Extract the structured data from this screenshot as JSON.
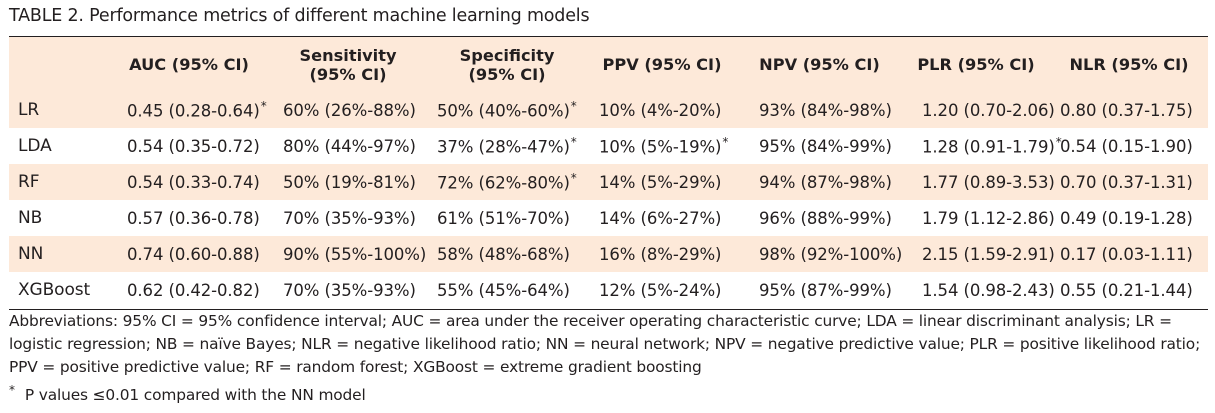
{
  "caption": {
    "label": "TABLE 2.",
    "title": "Performance metrics of different machine learning models"
  },
  "table": {
    "header_bg": "#fde9d9",
    "columns": [
      {
        "line1": "",
        "line2": ""
      },
      {
        "line1": "AUC (95% CI)",
        "line2": ""
      },
      {
        "line1": "Sensitivity",
        "line2": "(95% CI)"
      },
      {
        "line1": "Specificity",
        "line2": "(95% CI)"
      },
      {
        "line1": "PPV (95% CI)",
        "line2": ""
      },
      {
        "line1": "NPV (95% CI)",
        "line2": ""
      },
      {
        "line1": "PLR (95% CI)",
        "line2": ""
      },
      {
        "line1": "NLR (95% CI)",
        "line2": ""
      }
    ],
    "rows": [
      {
        "model": "LR",
        "cells": [
          {
            "text": "0.45 (0.28-0.64)",
            "star": "*"
          },
          {
            "text": "60% (26%-88%)",
            "star": ""
          },
          {
            "text": "50% (40%-60%)",
            "star": "*"
          },
          {
            "text": "10% (4%-20%)",
            "star": ""
          },
          {
            "text": "93% (84%-98%)",
            "star": ""
          },
          {
            "text": "1.20 (0.70-2.06)",
            "star": ""
          },
          {
            "text": "0.80 (0.37-1.75)",
            "star": ""
          }
        ]
      },
      {
        "model": "LDA",
        "cells": [
          {
            "text": "0.54 (0.35-0.72)",
            "star": ""
          },
          {
            "text": "80% (44%-97%)",
            "star": ""
          },
          {
            "text": "37% (28%-47%)",
            "star": "*"
          },
          {
            "text": "10% (5%-19%)",
            "star": "*"
          },
          {
            "text": "95% (84%-99%)",
            "star": ""
          },
          {
            "text": "1.28 (0.91-1.79)",
            "star": "*"
          },
          {
            "text": "0.54 (0.15-1.90)",
            "star": ""
          }
        ]
      },
      {
        "model": "RF",
        "cells": [
          {
            "text": "0.54 (0.33-0.74)",
            "star": ""
          },
          {
            "text": "50% (19%-81%)",
            "star": ""
          },
          {
            "text": "72% (62%-80%)",
            "star": "*"
          },
          {
            "text": "14% (5%-29%)",
            "star": ""
          },
          {
            "text": "94% (87%-98%)",
            "star": ""
          },
          {
            "text": "1.77 (0.89-3.53)",
            "star": ""
          },
          {
            "text": "0.70 (0.37-1.31)",
            "star": ""
          }
        ]
      },
      {
        "model": "NB",
        "cells": [
          {
            "text": "0.57 (0.36-0.78)",
            "star": ""
          },
          {
            "text": "70% (35%-93%)",
            "star": ""
          },
          {
            "text": "61% (51%-70%)",
            "star": ""
          },
          {
            "text": "14% (6%-27%)",
            "star": ""
          },
          {
            "text": "96% (88%-99%)",
            "star": ""
          },
          {
            "text": "1.79 (1.12-2.86)",
            "star": ""
          },
          {
            "text": "0.49 (0.19-1.28)",
            "star": ""
          }
        ]
      },
      {
        "model": "NN",
        "cells": [
          {
            "text": "0.74 (0.60-0.88)",
            "star": ""
          },
          {
            "text": "90% (55%-100%)",
            "star": ""
          },
          {
            "text": "58% (48%-68%)",
            "star": ""
          },
          {
            "text": "16% (8%-29%)",
            "star": ""
          },
          {
            "text": "98% (92%-100%)",
            "star": ""
          },
          {
            "text": "2.15 (1.59-2.91)",
            "star": ""
          },
          {
            "text": "0.17 (0.03-1.11)",
            "star": ""
          }
        ]
      },
      {
        "model": "XGBoost",
        "cells": [
          {
            "text": "0.62 (0.42-0.82)",
            "star": ""
          },
          {
            "text": "70% (35%-93%)",
            "star": ""
          },
          {
            "text": "55% (45%-64%)",
            "star": ""
          },
          {
            "text": "12% (5%-24%)",
            "star": ""
          },
          {
            "text": "95% (87%-99%)",
            "star": ""
          },
          {
            "text": "1.54 (0.98-2.43)",
            "star": ""
          },
          {
            "text": "0.55 (0.21-1.44)",
            "star": ""
          }
        ]
      }
    ]
  },
  "footnotes": {
    "abbreviations": "Abbreviations: 95% CI = 95% confidence interval; AUC = area under the receiver operating characteristic curve; LDA = linear discriminant analysis; LR = logistic regression; NB = naïve Bayes; NLR = negative likelihood ratio; NN = neural network; NPV = negative predictive value; PLR = positive likelihood ratio; PPV = positive predictive value; RF = random forest; XGBoost = extreme gradient boosting",
    "star_symbol": "*",
    "star_note": "P values ≤0.01 compared with the NN model"
  }
}
